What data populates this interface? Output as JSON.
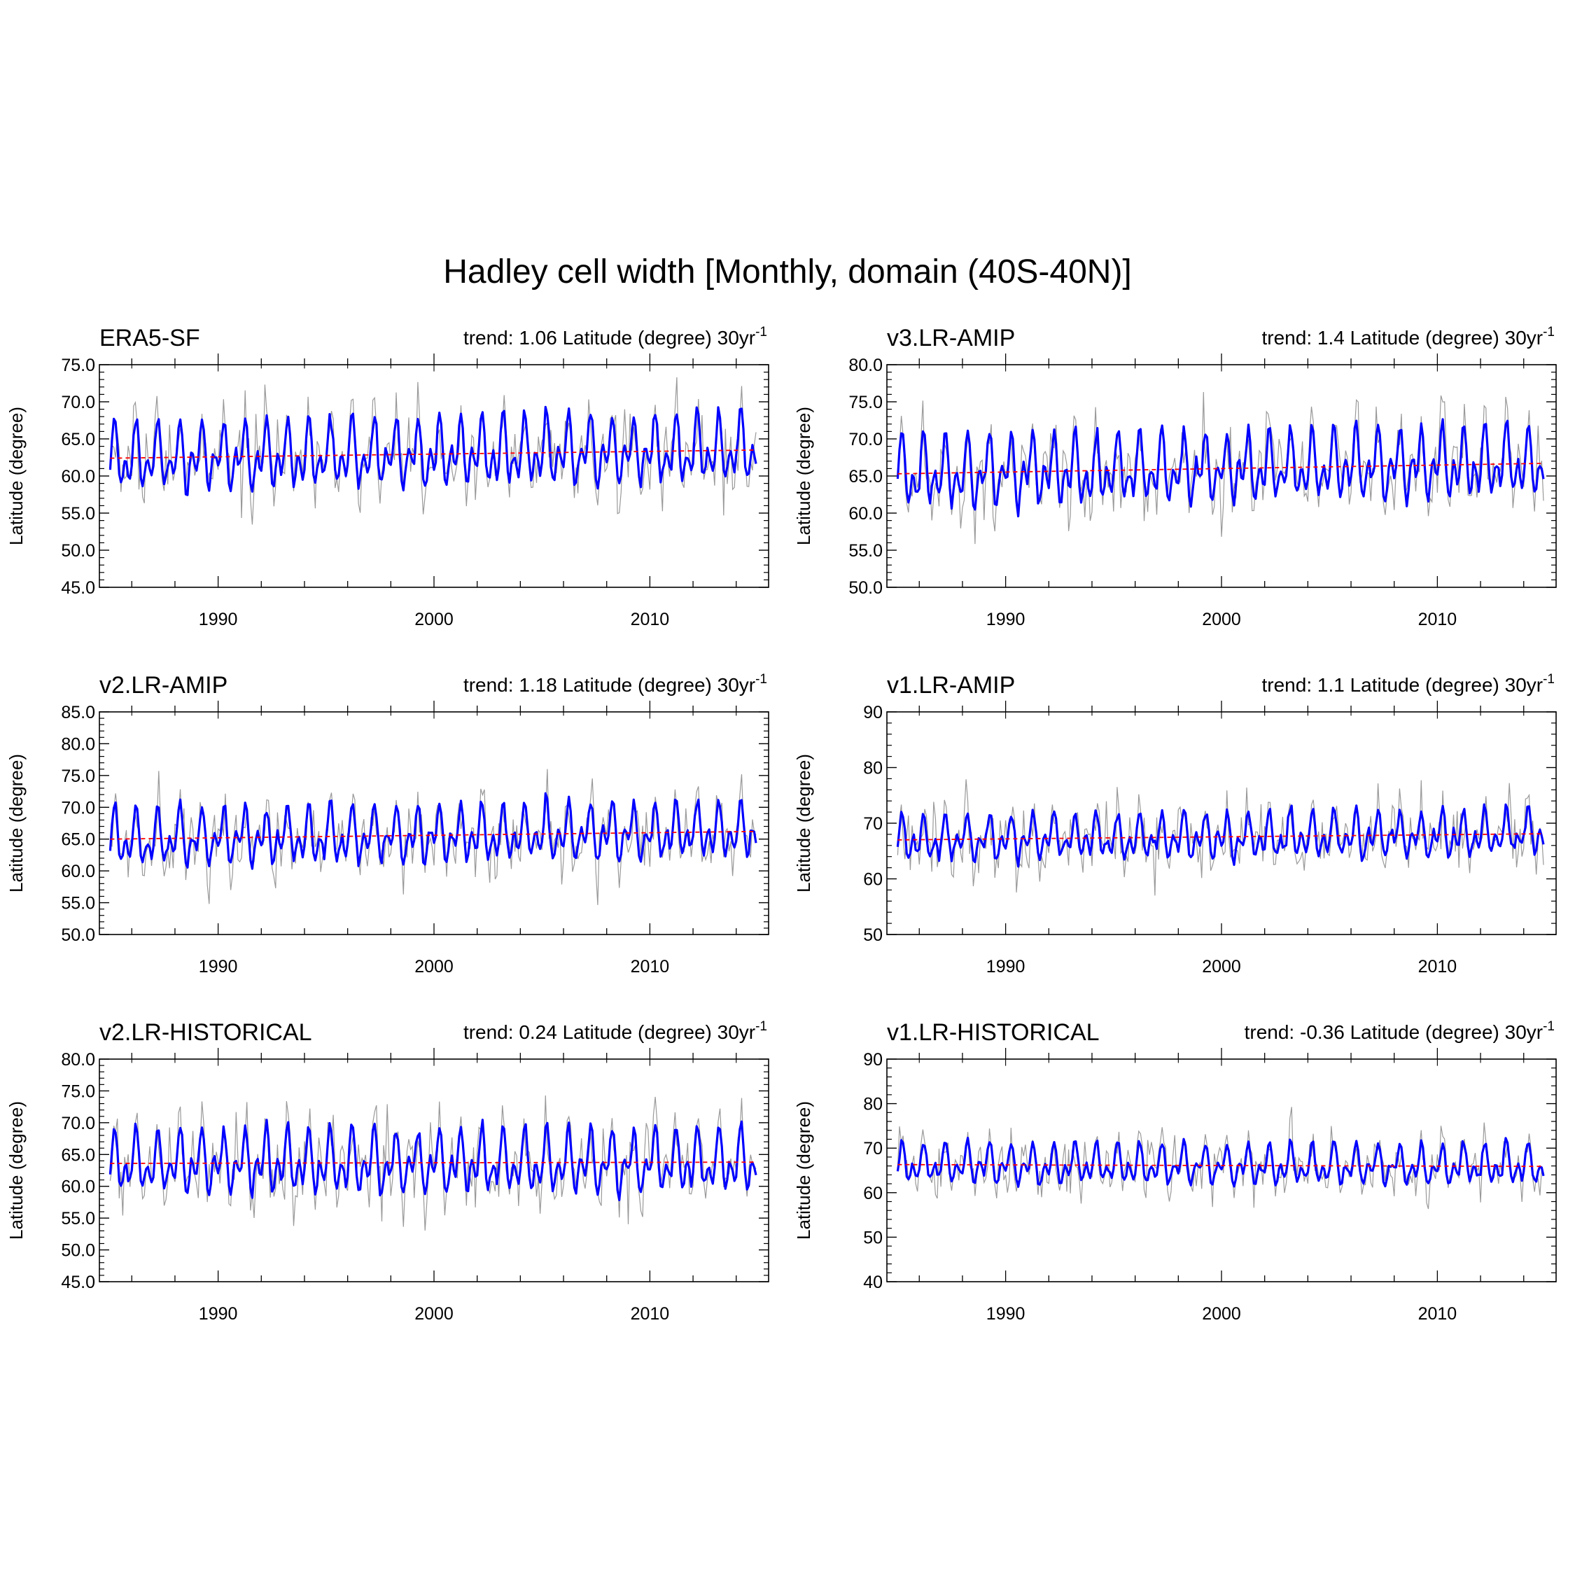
{
  "figure": {
    "title": "Hadley cell width [Monthly, domain (40S-40N)]"
  },
  "chart_data": [
    {
      "type": "line",
      "panel_title": "ERA5-SF",
      "trend_text": "trend: 1.06 Latitude (degree) 30yr",
      "trend_exponent": "-1",
      "ylabel": "Latitude (degree)",
      "xlabel": "",
      "xlim": [
        1984.5,
        2015.5
      ],
      "ylim": [
        45,
        75
      ],
      "yticks": [
        45,
        50,
        55,
        60,
        65,
        70,
        75
      ],
      "ytick_labels": [
        "45.0",
        "50.0",
        "55.0",
        "60.0",
        "65.0",
        "70.0",
        "75.0"
      ],
      "xticks": [
        1990,
        2000,
        2010
      ],
      "xtick_labels": [
        "1990",
        "2000",
        "2010"
      ],
      "grid": false,
      "x_range": [
        1985.0,
        2014.9
      ],
      "mean": 63.0,
      "amplitude": 5.6,
      "noise": 4.2,
      "smooth_noise": 1.0,
      "trend_line": {
        "start": 62.4,
        "end": 63.5,
        "color": "#ff0000"
      },
      "series_colors": {
        "monthly": "#999999",
        "smoothed": "#0000ff"
      }
    },
    {
      "type": "line",
      "panel_title": "v3.LR-AMIP",
      "trend_text": "trend: 1.4 Latitude (degree) 30yr",
      "trend_exponent": "-1",
      "ylabel": "Latitude (degree)",
      "xlabel": "",
      "xlim": [
        1984.5,
        2015.5
      ],
      "ylim": [
        50,
        80
      ],
      "yticks": [
        50,
        55,
        60,
        65,
        70,
        75,
        80
      ],
      "ytick_labels": [
        "50.0",
        "55.0",
        "60.0",
        "65.0",
        "70.0",
        "75.0",
        "80.0"
      ],
      "xticks": [
        1990,
        2000,
        2010
      ],
      "xtick_labels": [
        "1990",
        "2000",
        "2010"
      ],
      "grid": false,
      "x_range": [
        1985.0,
        2014.9
      ],
      "mean": 66.0,
      "amplitude": 5.8,
      "noise": 4.6,
      "smooth_noise": 1.1,
      "trend_line": {
        "start": 65.3,
        "end": 66.7,
        "color": "#ff0000"
      },
      "series_colors": {
        "monthly": "#999999",
        "smoothed": "#0000ff"
      }
    },
    {
      "type": "line",
      "panel_title": "v2.LR-AMIP",
      "trend_text": "trend: 1.18 Latitude (degree) 30yr",
      "trend_exponent": "-1",
      "ylabel": "Latitude (degree)",
      "xlabel": "",
      "xlim": [
        1984.5,
        2015.5
      ],
      "ylim": [
        50,
        85
      ],
      "yticks": [
        50,
        55,
        60,
        65,
        70,
        75,
        80,
        85
      ],
      "ytick_labels": [
        "50.0",
        "55.0",
        "60.0",
        "65.0",
        "70.0",
        "75.0",
        "80.0",
        "85.0"
      ],
      "xticks": [
        1990,
        2000,
        2010
      ],
      "xtick_labels": [
        "1990",
        "2000",
        "2010"
      ],
      "grid": false,
      "x_range": [
        1985.0,
        2014.9
      ],
      "mean": 65.5,
      "amplitude": 5.5,
      "noise": 4.5,
      "smooth_noise": 1.1,
      "trend_line": {
        "start": 65.0,
        "end": 66.2,
        "color": "#ff0000"
      },
      "series_colors": {
        "monthly": "#999999",
        "smoothed": "#0000ff"
      }
    },
    {
      "type": "line",
      "panel_title": "v1.LR-AMIP",
      "trend_text": "trend: 1.1 Latitude (degree) 30yr",
      "trend_exponent": "-1",
      "ylabel": "Latitude (degree)",
      "xlabel": "",
      "xlim": [
        1984.5,
        2015.5
      ],
      "ylim": [
        50,
        90
      ],
      "yticks": [
        50,
        60,
        70,
        80,
        90
      ],
      "ytick_labels": [
        "50",
        "60",
        "70",
        "80",
        "90"
      ],
      "xticks": [
        1990,
        2000,
        2010
      ],
      "xtick_labels": [
        "1990",
        "2000",
        "2010"
      ],
      "grid": false,
      "x_range": [
        1985.0,
        2014.9
      ],
      "mean": 67.5,
      "amplitude": 5.0,
      "noise": 5.5,
      "smooth_noise": 1.4,
      "trend_line": {
        "start": 67.0,
        "end": 68.1,
        "color": "#ff0000"
      },
      "series_colors": {
        "monthly": "#999999",
        "smoothed": "#0000ff"
      }
    },
    {
      "type": "line",
      "panel_title": "v2.LR-HISTORICAL",
      "trend_text": "trend: 0.24 Latitude (degree) 30yr",
      "trend_exponent": "-1",
      "ylabel": "Latitude (degree)",
      "xlabel": "",
      "xlim": [
        1984.5,
        2015.5
      ],
      "ylim": [
        45,
        80
      ],
      "yticks": [
        45,
        50,
        55,
        60,
        65,
        70,
        75,
        80
      ],
      "ytick_labels": [
        "45.0",
        "50.0",
        "55.0",
        "60.0",
        "65.0",
        "70.0",
        "75.0",
        "80.0"
      ],
      "xticks": [
        1990,
        2000,
        2010
      ],
      "xtick_labels": [
        "1990",
        "2000",
        "2010"
      ],
      "grid": false,
      "x_range": [
        1985.0,
        2014.9
      ],
      "mean": 63.5,
      "amplitude": 6.2,
      "noise": 4.8,
      "smooth_noise": 1.1,
      "trend_line": {
        "start": 63.6,
        "end": 63.8,
        "color": "#ff0000"
      },
      "series_colors": {
        "monthly": "#999999",
        "smoothed": "#0000ff"
      }
    },
    {
      "type": "line",
      "panel_title": "v1.LR-HISTORICAL",
      "trend_text": "trend: -0.36 Latitude (degree) 30yr",
      "trend_exponent": "-1",
      "ylabel": "Latitude (degree)",
      "xlabel": "",
      "xlim": [
        1984.5,
        2015.5
      ],
      "ylim": [
        40,
        90
      ],
      "yticks": [
        40,
        50,
        60,
        70,
        80,
        90
      ],
      "ytick_labels": [
        "40",
        "50",
        "60",
        "70",
        "80",
        "90"
      ],
      "xticks": [
        1990,
        2000,
        2010
      ],
      "xtick_labels": [
        "1990",
        "2000",
        "2010"
      ],
      "grid": false,
      "x_range": [
        1985.0,
        2014.9
      ],
      "mean": 66.0,
      "amplitude": 5.6,
      "noise": 5.0,
      "smooth_noise": 1.2,
      "trend_line": {
        "start": 66.3,
        "end": 65.9,
        "color": "#ff0000"
      },
      "series_colors": {
        "monthly": "#999999",
        "smoothed": "#0000ff"
      }
    }
  ]
}
